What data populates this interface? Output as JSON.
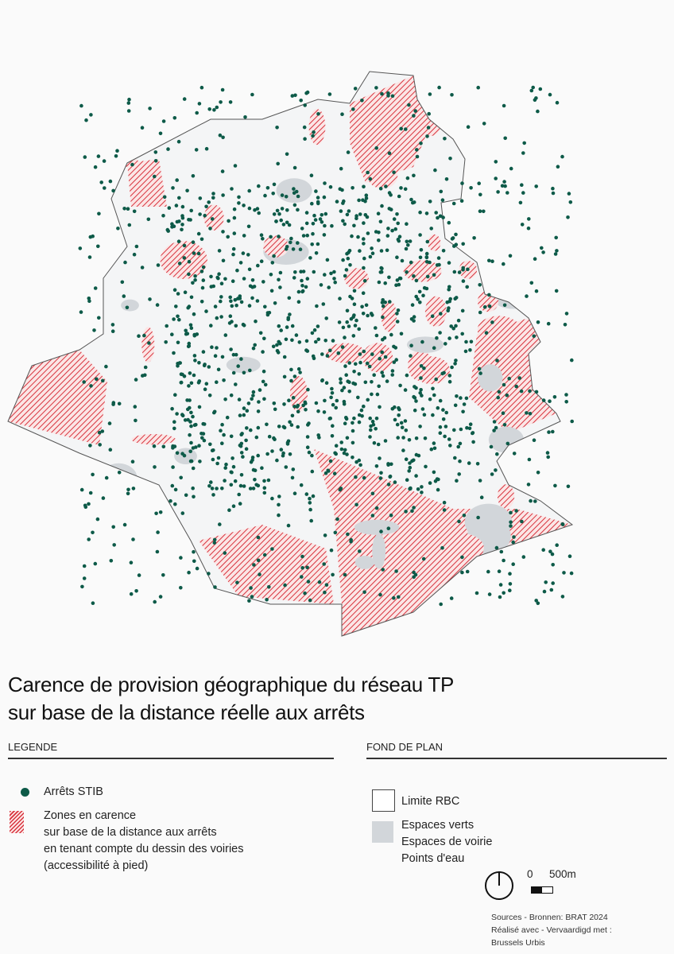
{
  "title": {
    "line1": "Carence de provision géographique du réseau TP",
    "line2": "sur base de la distance réelle aux arrêts"
  },
  "legend": {
    "heading": "LEGENDE",
    "stops": {
      "label": "Arrêts STIB",
      "color": "#0d5a48",
      "icon": "dot-icon"
    },
    "zones": {
      "lines": [
        "Zones en carence",
        "sur base de la distance aux arrêts",
        "en tenant compte du dessin des voiries",
        "(accessibilité à pied)"
      ],
      "color": "#d8333d",
      "icon": "hatch-swatch"
    }
  },
  "basemap": {
    "heading": "FOND DE PLAN",
    "boundary": {
      "label": "Limite RBC"
    },
    "gray_features": {
      "lines": [
        "Espaces verts",
        "Espaces de voirie",
        "Points d'eau"
      ],
      "color": "#d2d6da"
    }
  },
  "scale": {
    "zero": "0",
    "end": "500m"
  },
  "sources": [
    "Sources - Bronnen: BRAT 2024",
    "Réalisé avec - Vervaardigd met :",
    "Brussels Urbis"
  ]
}
